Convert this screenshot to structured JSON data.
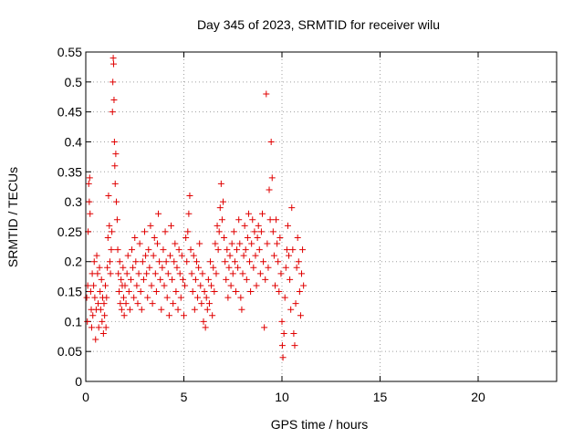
{
  "chart_data": {
    "type": "scatter",
    "title": "Day 345 of 2023, SRMTID for receiver wilu",
    "xlabel": "GPS time / hours",
    "ylabel": "SRMTID / TECUs",
    "xlim": [
      0,
      24
    ],
    "ylim": [
      0,
      0.55
    ],
    "xticks": [
      "0",
      "5",
      "10",
      "15",
      "20"
    ],
    "yticks": [
      "0",
      "0.05",
      "0.1",
      "0.15",
      "0.2",
      "0.25",
      "0.3",
      "0.35",
      "0.4",
      "0.45",
      "0.5",
      "0.55"
    ],
    "grid": true,
    "marker": "+",
    "color": "#e00000",
    "series": [
      {
        "points": [
          [
            0.05,
            0.14
          ],
          [
            0.08,
            0.1
          ],
          [
            0.1,
            0.16
          ],
          [
            0.12,
            0.25
          ],
          [
            0.15,
            0.33
          ],
          [
            0.18,
            0.3
          ],
          [
            0.2,
            0.34
          ],
          [
            0.22,
            0.28
          ],
          [
            0.25,
            0.15
          ],
          [
            0.28,
            0.12
          ],
          [
            0.3,
            0.09
          ],
          [
            0.33,
            0.18
          ],
          [
            0.36,
            0.11
          ],
          [
            0.4,
            0.16
          ],
          [
            0.43,
            0.2
          ],
          [
            0.46,
            0.14
          ],
          [
            0.5,
            0.07
          ],
          [
            0.53,
            0.12
          ],
          [
            0.56,
            0.21
          ],
          [
            0.6,
            0.18
          ],
          [
            0.63,
            0.13
          ],
          [
            0.66,
            0.09
          ],
          [
            0.7,
            0.19
          ],
          [
            0.73,
            0.15
          ],
          [
            0.76,
            0.12
          ],
          [
            0.8,
            0.17
          ],
          [
            0.83,
            0.1
          ],
          [
            0.86,
            0.14
          ],
          [
            0.9,
            0.08
          ],
          [
            0.93,
            0.13
          ],
          [
            0.96,
            0.11
          ],
          [
            1.0,
            0.16
          ],
          [
            1.03,
            0.09
          ],
          [
            1.06,
            0.14
          ],
          [
            1.1,
            0.19
          ],
          [
            1.13,
            0.24
          ],
          [
            1.16,
            0.31
          ],
          [
            1.2,
            0.26
          ],
          [
            1.23,
            0.2
          ],
          [
            1.26,
            0.18
          ],
          [
            1.3,
            0.22
          ],
          [
            1.33,
            0.25
          ],
          [
            1.36,
            0.45
          ],
          [
            1.38,
            0.5
          ],
          [
            1.4,
            0.54
          ],
          [
            1.42,
            0.53
          ],
          [
            1.44,
            0.47
          ],
          [
            1.46,
            0.4
          ],
          [
            1.48,
            0.36
          ],
          [
            1.5,
            0.33
          ],
          [
            1.53,
            0.38
          ],
          [
            1.56,
            0.3
          ],
          [
            1.6,
            0.27
          ],
          [
            1.63,
            0.22
          ],
          [
            1.66,
            0.18
          ],
          [
            1.7,
            0.15
          ],
          [
            1.73,
            0.2
          ],
          [
            1.76,
            0.13
          ],
          [
            1.8,
            0.17
          ],
          [
            1.83,
            0.12
          ],
          [
            1.86,
            0.16
          ],
          [
            1.9,
            0.19
          ],
          [
            1.93,
            0.14
          ],
          [
            1.96,
            0.11
          ],
          [
            2.0,
            0.16
          ],
          [
            2.05,
            0.13
          ],
          [
            2.1,
            0.18
          ],
          [
            2.15,
            0.21
          ],
          [
            2.2,
            0.15
          ],
          [
            2.25,
            0.12
          ],
          [
            2.3,
            0.17
          ],
          [
            2.35,
            0.22
          ],
          [
            2.4,
            0.19
          ],
          [
            2.45,
            0.14
          ],
          [
            2.5,
            0.24
          ],
          [
            2.55,
            0.2
          ],
          [
            2.6,
            0.16
          ],
          [
            2.65,
            0.13
          ],
          [
            2.7,
            0.18
          ],
          [
            2.75,
            0.23
          ],
          [
            2.8,
            0.15
          ],
          [
            2.85,
            0.12
          ],
          [
            2.9,
            0.2
          ],
          [
            2.95,
            0.17
          ],
          [
            3.0,
            0.25
          ],
          [
            3.05,
            0.21
          ],
          [
            3.1,
            0.18
          ],
          [
            3.15,
            0.14
          ],
          [
            3.2,
            0.22
          ],
          [
            3.25,
            0.19
          ],
          [
            3.3,
            0.26
          ],
          [
            3.35,
            0.16
          ],
          [
            3.4,
            0.13
          ],
          [
            3.45,
            0.21
          ],
          [
            3.5,
            0.24
          ],
          [
            3.55,
            0.18
          ],
          [
            3.6,
            0.15
          ],
          [
            3.65,
            0.23
          ],
          [
            3.7,
            0.28
          ],
          [
            3.75,
            0.2
          ],
          [
            3.8,
            0.17
          ],
          [
            3.85,
            0.12
          ],
          [
            3.9,
            0.19
          ],
          [
            3.95,
            0.22
          ],
          [
            4.0,
            0.16
          ],
          [
            4.05,
            0.25
          ],
          [
            4.1,
            0.2
          ],
          [
            4.15,
            0.14
          ],
          [
            4.2,
            0.18
          ],
          [
            4.25,
            0.11
          ],
          [
            4.3,
            0.21
          ],
          [
            4.35,
            0.26
          ],
          [
            4.4,
            0.17
          ],
          [
            4.45,
            0.13
          ],
          [
            4.5,
            0.2
          ],
          [
            4.55,
            0.23
          ],
          [
            4.6,
            0.15
          ],
          [
            4.65,
            0.19
          ],
          [
            4.7,
            0.12
          ],
          [
            4.75,
            0.22
          ],
          [
            4.8,
            0.18
          ],
          [
            4.85,
            0.14
          ],
          [
            4.9,
            0.21
          ],
          [
            4.95,
            0.17
          ],
          [
            5.0,
            0.11
          ],
          [
            5.05,
            0.16
          ],
          [
            5.1,
            0.24
          ],
          [
            5.15,
            0.2
          ],
          [
            5.2,
            0.25
          ],
          [
            5.25,
            0.28
          ],
          [
            5.3,
            0.31
          ],
          [
            5.35,
            0.22
          ],
          [
            5.4,
            0.18
          ],
          [
            5.45,
            0.15
          ],
          [
            5.5,
            0.21
          ],
          [
            5.55,
            0.12
          ],
          [
            5.6,
            0.17
          ],
          [
            5.65,
            0.2
          ],
          [
            5.7,
            0.14
          ],
          [
            5.75,
            0.19
          ],
          [
            5.8,
            0.23
          ],
          [
            5.85,
            0.16
          ],
          [
            5.9,
            0.13
          ],
          [
            5.95,
            0.18
          ],
          [
            6.0,
            0.1
          ],
          [
            6.05,
            0.15
          ],
          [
            6.1,
            0.09
          ],
          [
            6.15,
            0.14
          ],
          [
            6.2,
            0.12
          ],
          [
            6.25,
            0.17
          ],
          [
            6.3,
            0.13
          ],
          [
            6.35,
            0.2
          ],
          [
            6.4,
            0.16
          ],
          [
            6.45,
            0.11
          ],
          [
            6.5,
            0.19
          ],
          [
            6.55,
            0.15
          ],
          [
            6.6,
            0.23
          ],
          [
            6.65,
            0.18
          ],
          [
            6.7,
            0.26
          ],
          [
            6.75,
            0.22
          ],
          [
            6.8,
            0.25
          ],
          [
            6.85,
            0.29
          ],
          [
            6.9,
            0.33
          ],
          [
            6.95,
            0.27
          ],
          [
            7.0,
            0.3
          ],
          [
            7.05,
            0.24
          ],
          [
            7.1,
            0.2
          ],
          [
            7.15,
            0.17
          ],
          [
            7.2,
            0.22
          ],
          [
            7.25,
            0.14
          ],
          [
            7.3,
            0.19
          ],
          [
            7.35,
            0.21
          ],
          [
            7.4,
            0.16
          ],
          [
            7.45,
            0.23
          ],
          [
            7.5,
            0.18
          ],
          [
            7.55,
            0.25
          ],
          [
            7.6,
            0.2
          ],
          [
            7.65,
            0.15
          ],
          [
            7.7,
            0.22
          ],
          [
            7.75,
            0.19
          ],
          [
            7.8,
            0.27
          ],
          [
            7.85,
            0.23
          ],
          [
            7.9,
            0.14
          ],
          [
            7.95,
            0.12
          ],
          [
            8.0,
            0.18
          ],
          [
            8.05,
            0.21
          ],
          [
            8.1,
            0.26
          ],
          [
            8.15,
            0.22
          ],
          [
            8.2,
            0.17
          ],
          [
            8.25,
            0.24
          ],
          [
            8.3,
            0.28
          ],
          [
            8.35,
            0.2
          ],
          [
            8.4,
            0.15
          ],
          [
            8.45,
            0.23
          ],
          [
            8.5,
            0.27
          ],
          [
            8.55,
            0.19
          ],
          [
            8.6,
            0.25
          ],
          [
            8.65,
            0.21
          ],
          [
            8.7,
            0.16
          ],
          [
            8.75,
            0.24
          ],
          [
            8.8,
            0.26
          ],
          [
            8.85,
            0.22
          ],
          [
            8.9,
            0.18
          ],
          [
            8.95,
            0.25
          ],
          [
            9.0,
            0.28
          ],
          [
            9.05,
            0.2
          ],
          [
            9.1,
            0.09
          ],
          [
            9.15,
            0.17
          ],
          [
            9.2,
            0.48
          ],
          [
            9.25,
            0.23
          ],
          [
            9.3,
            0.19
          ],
          [
            9.35,
            0.32
          ],
          [
            9.4,
            0.27
          ],
          [
            9.45,
            0.4
          ],
          [
            9.5,
            0.34
          ],
          [
            9.55,
            0.25
          ],
          [
            9.6,
            0.21
          ],
          [
            9.65,
            0.16
          ],
          [
            9.7,
            0.27
          ],
          [
            9.75,
            0.23
          ],
          [
            9.8,
            0.2
          ],
          [
            9.85,
            0.15
          ],
          [
            9.9,
            0.24
          ],
          [
            9.95,
            0.18
          ],
          [
            10.0,
            0.1
          ],
          [
            10.02,
            0.06
          ],
          [
            10.05,
            0.04
          ],
          [
            10.1,
            0.08
          ],
          [
            10.15,
            0.14
          ],
          [
            10.2,
            0.19
          ],
          [
            10.25,
            0.22
          ],
          [
            10.3,
            0.26
          ],
          [
            10.35,
            0.21
          ],
          [
            10.4,
            0.17
          ],
          [
            10.45,
            0.12
          ],
          [
            10.5,
            0.29
          ],
          [
            10.55,
            0.22
          ],
          [
            10.6,
            0.08
          ],
          [
            10.65,
            0.06
          ],
          [
            10.7,
            0.13
          ],
          [
            10.75,
            0.19
          ],
          [
            10.8,
            0.24
          ],
          [
            10.85,
            0.2
          ],
          [
            10.9,
            0.15
          ],
          [
            10.95,
            0.11
          ],
          [
            11.0,
            0.18
          ],
          [
            11.05,
            0.22
          ],
          [
            11.1,
            0.16
          ]
        ]
      }
    ]
  }
}
